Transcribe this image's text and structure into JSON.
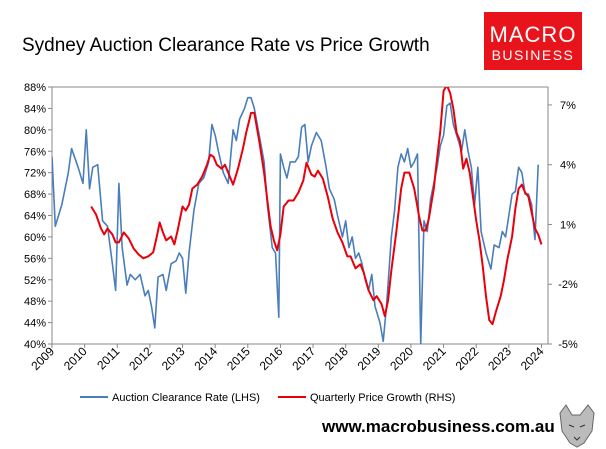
{
  "chart_data": {
    "type": "line",
    "title": "Sydney Auction Clearance Rate vs Price Growth",
    "logo": {
      "line1": "MACRO",
      "line2": "BUSINESS"
    },
    "source": "www.macrobusiness.com.au",
    "xlim": [
      2009,
      2024.2
    ],
    "xticks": [
      2009,
      2010,
      2011,
      2012,
      2013,
      2014,
      2015,
      2016,
      2017,
      2018,
      2019,
      2020,
      2021,
      2022,
      2023,
      2024
    ],
    "ylim": [
      40,
      88
    ],
    "yticks": [
      {
        "value": 40,
        "label": "40%"
      },
      {
        "value": 44,
        "label": "44%"
      },
      {
        "value": 48,
        "label": "48%"
      },
      {
        "value": 52,
        "label": "52%"
      },
      {
        "value": 56,
        "label": "56%"
      },
      {
        "value": 60,
        "label": "60%"
      },
      {
        "value": 64,
        "label": "64%"
      },
      {
        "value": 68,
        "label": "68%"
      },
      {
        "value": 72,
        "label": "72%"
      },
      {
        "value": 76,
        "label": "76%"
      },
      {
        "value": 80,
        "label": "80%"
      },
      {
        "value": 84,
        "label": "84%"
      },
      {
        "value": 88,
        "label": "88%"
      }
    ],
    "y2lim": [
      -5,
      7.9
    ],
    "y2ticks": [
      {
        "value": -5,
        "label": "-5%"
      },
      {
        "value": -2,
        "label": "-2%"
      },
      {
        "value": 1,
        "label": "1%"
      },
      {
        "value": 4,
        "label": "4%"
      },
      {
        "value": 7,
        "label": "7%"
      }
    ],
    "series": [
      {
        "name": "Auction Clearance Rate (LHS)",
        "color": "#4a7ebb",
        "axis": "y",
        "x": [
          2009.0,
          2009.1,
          2009.3,
          2009.5,
          2009.6,
          2009.8,
          2009.95,
          2010.05,
          2010.15,
          2010.25,
          2010.4,
          2010.55,
          2010.7,
          2010.85,
          2010.95,
          2011.05,
          2011.15,
          2011.3,
          2011.4,
          2011.55,
          2011.7,
          2011.85,
          2011.95,
          2012.05,
          2012.15,
          2012.25,
          2012.4,
          2012.5,
          2012.65,
          2012.8,
          2012.9,
          2013.0,
          2013.1,
          2013.2,
          2013.35,
          2013.5,
          2013.65,
          2013.8,
          2013.9,
          2014.0,
          2014.1,
          2014.25,
          2014.4,
          2014.55,
          2014.65,
          2014.75,
          2014.9,
          2015.0,
          2015.1,
          2015.2,
          2015.35,
          2015.5,
          2015.6,
          2015.75,
          2015.85,
          2015.95,
          2016.0,
          2016.1,
          2016.2,
          2016.3,
          2016.45,
          2016.55,
          2016.65,
          2016.75,
          2016.85,
          2016.95,
          2017.1,
          2017.25,
          2017.4,
          2017.5,
          2017.65,
          2017.75,
          2017.9,
          2018.0,
          2018.1,
          2018.2,
          2018.3,
          2018.4,
          2018.5,
          2018.6,
          2018.7,
          2018.8,
          2018.9,
          2019.05,
          2019.15,
          2019.25,
          2019.4,
          2019.5,
          2019.6,
          2019.7,
          2019.8,
          2019.9,
          2020.0,
          2020.1,
          2020.2,
          2020.3,
          2020.4,
          2020.5,
          2020.6,
          2020.7,
          2020.8,
          2020.9,
          2021.0,
          2021.1,
          2021.2,
          2021.3,
          2021.45,
          2021.55,
          2021.65,
          2021.75,
          2021.85,
          2021.95,
          2022.05,
          2022.15,
          2022.3,
          2022.45,
          2022.55,
          2022.7,
          2022.8,
          2022.9,
          2023.0,
          2023.1,
          2023.2,
          2023.3,
          2023.4,
          2023.5,
          2023.6,
          2023.7,
          2023.8,
          2023.9
        ],
        "values": [
          75,
          62,
          66,
          72,
          76.5,
          73,
          70,
          80,
          69,
          73,
          73.5,
          63,
          62,
          55,
          50,
          70,
          58,
          51,
          53,
          52,
          53,
          49,
          50,
          47,
          43,
          52.5,
          53,
          50,
          55,
          55.5,
          57,
          56,
          49.5,
          57,
          65,
          70,
          71,
          74,
          81,
          79,
          76,
          72,
          70,
          80,
          78,
          82,
          84,
          86,
          86,
          84,
          79,
          74,
          66,
          58,
          57,
          45,
          75.5,
          73,
          71,
          74,
          74,
          75,
          80.5,
          81,
          74,
          77,
          79.5,
          78,
          73,
          69,
          67,
          64,
          60,
          63,
          58,
          60,
          56,
          57,
          55,
          52,
          50,
          53,
          47,
          44,
          40.5,
          47,
          60,
          65,
          73,
          75.5,
          74,
          76.5,
          73,
          74,
          75.5,
          40,
          63,
          61,
          67,
          70,
          73,
          77,
          79,
          84.5,
          85,
          81,
          78,
          76,
          80,
          76,
          73,
          66,
          73,
          61,
          57,
          54,
          58.5,
          58,
          61,
          60,
          64,
          68,
          68.5,
          73,
          72,
          68,
          68,
          66,
          59.5,
          73.5
        ]
      },
      {
        "name": "Quarterly Price Growth (RHS)",
        "color": "#e8000b",
        "axis": "y2",
        "x": [
          2010.2,
          2010.35,
          2010.5,
          2010.6,
          2010.7,
          2010.85,
          2010.95,
          2011.05,
          2011.2,
          2011.35,
          2011.5,
          2011.65,
          2011.8,
          2011.95,
          2012.1,
          2012.2,
          2012.3,
          2012.4,
          2012.5,
          2012.65,
          2012.75,
          2012.85,
          2013.0,
          2013.1,
          2013.2,
          2013.3,
          2013.45,
          2013.6,
          2013.75,
          2013.85,
          2013.95,
          2014.05,
          2014.2,
          2014.3,
          2014.45,
          2014.55,
          2014.7,
          2014.85,
          2014.95,
          2015.1,
          2015.2,
          2015.35,
          2015.5,
          2015.6,
          2015.7,
          2015.8,
          2015.9,
          2016.0,
          2016.1,
          2016.25,
          2016.4,
          2016.55,
          2016.7,
          2016.8,
          2016.95,
          2017.05,
          2017.15,
          2017.3,
          2017.45,
          2017.6,
          2017.75,
          2017.9,
          2018.05,
          2018.15,
          2018.3,
          2018.45,
          2018.55,
          2018.7,
          2018.85,
          2018.95,
          2019.1,
          2019.2,
          2019.3,
          2019.4,
          2019.55,
          2019.7,
          2019.8,
          2019.95,
          2020.1,
          2020.25,
          2020.35,
          2020.45,
          2020.55,
          2020.7,
          2020.8,
          2020.9,
          2021.0,
          2021.1,
          2021.2,
          2021.3,
          2021.4,
          2021.5,
          2021.6,
          2021.7,
          2021.8,
          2021.9,
          2022.0,
          2022.1,
          2022.2,
          2022.3,
          2022.4,
          2022.5,
          2022.6,
          2022.75,
          2022.85,
          2022.95,
          2023.1,
          2023.2,
          2023.3,
          2023.4,
          2023.5,
          2023.6,
          2023.7,
          2023.8,
          2023.9,
          2024.0
        ],
        "values": [
          1.9,
          1.5,
          0.8,
          0.5,
          0.8,
          0.5,
          0.1,
          0.1,
          0.6,
          0.3,
          -0.2,
          -0.5,
          -0.7,
          -0.6,
          -0.4,
          0.3,
          1.1,
          0.6,
          0.2,
          0.4,
          0.0,
          0.7,
          1.9,
          1.7,
          2.0,
          2.8,
          3.0,
          3.4,
          4.0,
          4.5,
          4.4,
          4.0,
          3.8,
          4.0,
          3.4,
          3.0,
          3.8,
          4.8,
          5.6,
          6.6,
          6.6,
          5.2,
          3.6,
          2.2,
          0.9,
          0.2,
          -0.3,
          0.5,
          1.9,
          2.2,
          2.2,
          2.6,
          3.2,
          4.1,
          3.5,
          3.4,
          3.7,
          3.3,
          2.4,
          1.3,
          0.6,
          0.1,
          -0.6,
          -0.6,
          -1.2,
          -1.0,
          -1.4,
          -2.3,
          -2.8,
          -2.6,
          -3.0,
          -3.6,
          -2.8,
          -1.3,
          0.6,
          2.8,
          3.6,
          3.6,
          2.8,
          1.4,
          0.7,
          0.7,
          1.3,
          2.8,
          4.3,
          5.7,
          7.7,
          8.0,
          7.6,
          6.8,
          5.6,
          5.2,
          3.8,
          4.3,
          3.6,
          2.4,
          1.2,
          0.2,
          -1.1,
          -2.6,
          -3.8,
          -4.0,
          -3.4,
          -2.6,
          -1.8,
          -0.8,
          0.4,
          1.8,
          2.8,
          3.0,
          2.6,
          2.4,
          1.6,
          0.8,
          0.5,
          0.0
        ]
      }
    ]
  }
}
